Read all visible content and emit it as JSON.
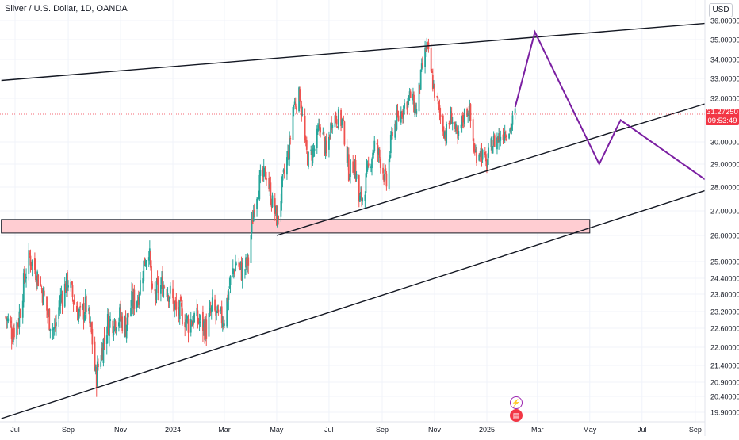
{
  "header": {
    "symbol": "Silver / U.S. Dollar, 1D, OANDA",
    "currency": "USD"
  },
  "last_price": {
    "price": "31.27250",
    "countdown": "09:53:49",
    "value": 31.2725
  },
  "events": {
    "lightning_icon": "lightning-icon",
    "flag_icon": "us-flag-icon"
  },
  "colors": {
    "up": "#26a69a",
    "down": "#ef5350",
    "trendline": "#131722",
    "projection": "#7b1fa2",
    "zone_fill": "#ffcdd2",
    "last_price": "#f23645"
  },
  "chart_data": {
    "type": "candlestick",
    "title": "Silver / U.S. Dollar, 1D, OANDA",
    "y_unit": "USD",
    "ylim": [
      19.6,
      36.2
    ],
    "y_ticks": [
      "36.00000",
      "35.00000",
      "34.00000",
      "33.00000",
      "32.00000",
      "30.00000",
      "29.00000",
      "28.00000",
      "27.00000",
      "26.00000",
      "25.00000",
      "24.40000",
      "23.80000",
      "23.20000",
      "22.60000",
      "22.00000",
      "21.40000",
      "20.90000",
      "20.40000",
      "19.90000"
    ],
    "y_tick_values": [
      36,
      35,
      34,
      33,
      32,
      30,
      29,
      28,
      27,
      26,
      25,
      24.4,
      23.8,
      23.2,
      22.6,
      22,
      21.4,
      20.9,
      20.4,
      19.9
    ],
    "x_ticks": [
      "Jul",
      "Sep",
      "Nov",
      "2024",
      "Mar",
      "May",
      "Jul",
      "Sep",
      "Nov",
      "2025",
      "Mar",
      "May",
      "Jul",
      "Sep"
    ],
    "price_path": [
      [
        "2023-06-20",
        23.0
      ],
      [
        "2023-06-28",
        22.5
      ],
      [
        "2023-07-05",
        22.9
      ],
      [
        "2023-07-12",
        24.4
      ],
      [
        "2023-07-18",
        25.2
      ],
      [
        "2023-07-26",
        24.6
      ],
      [
        "2023-08-02",
        23.9
      ],
      [
        "2023-08-09",
        23.0
      ],
      [
        "2023-08-16",
        22.5
      ],
      [
        "2023-08-24",
        23.8
      ],
      [
        "2023-09-01",
        24.3
      ],
      [
        "2023-09-08",
        23.5
      ],
      [
        "2023-09-15",
        23.0
      ],
      [
        "2023-09-22",
        23.4
      ],
      [
        "2023-09-29",
        22.2
      ],
      [
        "2023-10-03",
        21.0
      ],
      [
        "2023-10-10",
        21.9
      ],
      [
        "2023-10-17",
        22.8
      ],
      [
        "2023-10-24",
        22.9
      ],
      [
        "2023-10-31",
        23.0
      ],
      [
        "2023-11-07",
        22.7
      ],
      [
        "2023-11-14",
        23.5
      ],
      [
        "2023-11-21",
        23.7
      ],
      [
        "2023-11-28",
        24.9
      ],
      [
        "2023-12-04",
        25.6
      ],
      [
        "2023-12-08",
        23.6
      ],
      [
        "2023-12-15",
        24.0
      ],
      [
        "2023-12-22",
        24.2
      ],
      [
        "2023-12-29",
        23.8
      ],
      [
        "2024-01-05",
        23.2
      ],
      [
        "2024-01-12",
        23.1
      ],
      [
        "2024-01-19",
        22.8
      ],
      [
        "2024-01-26",
        23.0
      ],
      [
        "2024-02-02",
        22.8
      ],
      [
        "2024-02-09",
        22.6
      ],
      [
        "2024-02-16",
        23.3
      ],
      [
        "2024-02-23",
        22.9
      ],
      [
        "2024-03-01",
        23.0
      ],
      [
        "2024-03-08",
        24.3
      ],
      [
        "2024-03-15",
        25.0
      ],
      [
        "2024-03-22",
        24.6
      ],
      [
        "2024-03-29",
        25.0
      ],
      [
        "2024-04-05",
        27.4
      ],
      [
        "2024-04-12",
        28.3
      ],
      [
        "2024-04-19",
        28.6
      ],
      [
        "2024-04-26",
        27.3
      ],
      [
        "2024-05-02",
        26.6
      ],
      [
        "2024-05-09",
        28.4
      ],
      [
        "2024-05-16",
        29.8
      ],
      [
        "2024-05-20",
        31.6
      ],
      [
        "2024-05-28",
        32.2
      ],
      [
        "2024-06-04",
        29.6
      ],
      [
        "2024-06-07",
        29.2
      ],
      [
        "2024-06-14",
        29.7
      ],
      [
        "2024-06-21",
        30.8
      ],
      [
        "2024-06-28",
        29.4
      ],
      [
        "2024-07-05",
        31.2
      ],
      [
        "2024-07-10",
        31.1
      ],
      [
        "2024-07-17",
        30.9
      ],
      [
        "2024-07-24",
        28.7
      ],
      [
        "2024-07-31",
        29.0
      ],
      [
        "2024-08-05",
        27.4
      ],
      [
        "2024-08-09",
        27.6
      ],
      [
        "2024-08-16",
        28.8
      ],
      [
        "2024-08-23",
        29.9
      ],
      [
        "2024-08-30",
        29.2
      ],
      [
        "2024-09-06",
        28.1
      ],
      [
        "2024-09-13",
        30.6
      ],
      [
        "2024-09-20",
        31.1
      ],
      [
        "2024-09-27",
        31.7
      ],
      [
        "2024-10-04",
        32.1
      ],
      [
        "2024-10-11",
        31.4
      ],
      [
        "2024-10-18",
        33.7
      ],
      [
        "2024-10-23",
        34.7
      ],
      [
        "2024-10-31",
        32.5
      ],
      [
        "2024-11-07",
        31.3
      ],
      [
        "2024-11-14",
        30.3
      ],
      [
        "2024-11-21",
        31.2
      ],
      [
        "2024-11-28",
        30.0
      ],
      [
        "2024-12-05",
        31.2
      ],
      [
        "2024-12-11",
        31.6
      ],
      [
        "2024-12-18",
        29.4
      ],
      [
        "2024-12-24",
        29.7
      ],
      [
        "2024-12-31",
        28.9
      ],
      [
        "2025-01-07",
        29.9
      ],
      [
        "2025-01-14",
        30.2
      ],
      [
        "2025-01-21",
        30.5
      ],
      [
        "2025-01-28",
        30.6
      ],
      [
        "2025-02-03",
        31.27
      ]
    ],
    "resistance_line": [
      [
        "2023-06-15",
        32.9
      ],
      [
        "2025-09-25",
        35.9
      ]
    ],
    "support_line_upper": [
      [
        "2024-05-01",
        26.0
      ],
      [
        "2025-09-25",
        31.9
      ]
    ],
    "support_line_lower": [
      [
        "2023-06-15",
        19.7
      ],
      [
        "2025-09-25",
        28.0
      ]
    ],
    "support_zone": {
      "from": [
        "2023-06-15",
        26.65
      ],
      "to": [
        "2025-05-01",
        26.1
      ]
    },
    "projection": [
      [
        "2025-02-03",
        31.6
      ],
      [
        "2025-02-26",
        35.4
      ],
      [
        "2025-05-12",
        29.0
      ],
      [
        "2025-06-06",
        31.0
      ],
      [
        "2025-09-25",
        28.0
      ]
    ],
    "grid": true,
    "legend": "none"
  }
}
